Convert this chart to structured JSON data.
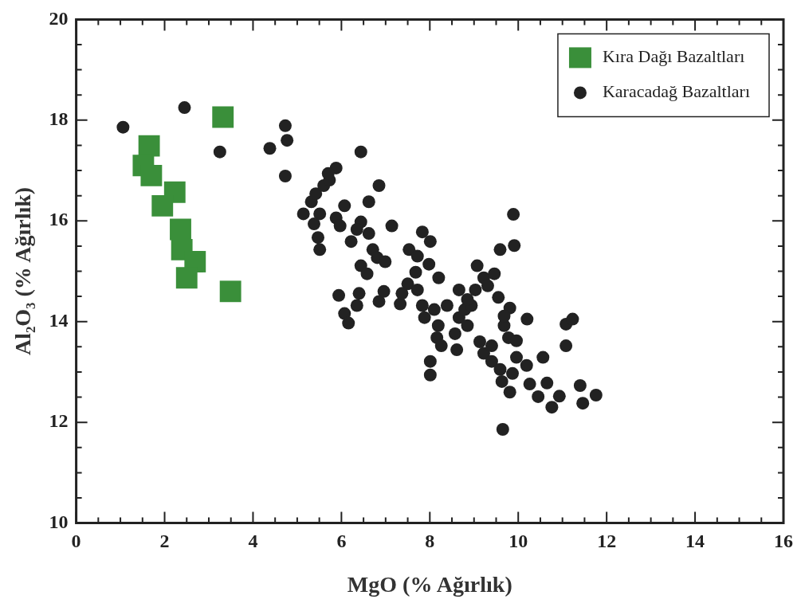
{
  "chart_data": {
    "type": "scatter",
    "xlabel": "MgO (% Ağırlık)",
    "ylabel": "Al₂O₃ (% Ağırlık)",
    "xlim": [
      0,
      16
    ],
    "ylim": [
      10,
      20
    ],
    "xticks": [
      0,
      {
        "value": 0.5,
        "label": null
      },
      {
        "value": 1,
        "label": null
      },
      {
        "value": 1.5,
        "label": null
      },
      2,
      {
        "value": 2.5,
        "label": null
      },
      {
        "value": 3,
        "label": null
      },
      {
        "value": 3.5,
        "label": null
      },
      4,
      {
        "value": 4.5,
        "label": null
      },
      {
        "value": 5,
        "label": null
      },
      {
        "value": 5.5,
        "label": null
      },
      6,
      {
        "value": 6.5,
        "label": null
      },
      {
        "value": 7,
        "label": null
      },
      {
        "value": 7.5,
        "label": null
      },
      8,
      {
        "value": 8.5,
        "label": null
      },
      {
        "value": 9,
        "label": null
      },
      {
        "value": 9.5,
        "label": null
      },
      10,
      {
        "value": 10.5,
        "label": null
      },
      {
        "value": 11,
        "label": null
      },
      {
        "value": 11.5,
        "label": null
      },
      12,
      {
        "value": 12.5,
        "label": null
      },
      {
        "value": 13,
        "label": null
      },
      {
        "value": 13.5,
        "label": null
      },
      14,
      {
        "value": 14.5,
        "label": null
      },
      {
        "value": 15,
        "label": null
      },
      {
        "value": 15.5,
        "label": null
      },
      16
    ],
    "yticks": [
      10,
      {
        "value": 10.5,
        "label": null
      },
      {
        "value": 11,
        "label": null
      },
      {
        "value": 11.5,
        "label": null
      },
      12,
      {
        "value": 12.5,
        "label": null
      },
      {
        "value": 13,
        "label": null
      },
      {
        "value": 13.5,
        "label": null
      },
      14,
      {
        "value": 14.5,
        "label": null
      },
      {
        "value": 15,
        "label": null
      },
      {
        "value": 15.5,
        "label": null
      },
      16,
      {
        "value": 16.5,
        "label": null
      },
      {
        "value": 17,
        "label": null
      },
      {
        "value": 17.5,
        "label": null
      },
      18,
      {
        "value": 18.5,
        "label": null
      },
      {
        "value": 19,
        "label": null
      },
      {
        "value": 19.5,
        "label": null
      },
      20
    ],
    "legend": "top right",
    "grid": false,
    "series": [
      {
        "name": "Kıra Dağı Bazaltları",
        "color": "#3a8f3a",
        "marker": "square",
        "x": [
          3.32,
          3.49,
          1.65,
          1.52,
          2.23,
          1.95,
          2.36,
          2.39,
          2.69,
          2.5,
          1.7
        ],
        "values": [
          18.06,
          14.6,
          17.49,
          17.1,
          16.57,
          16.3,
          15.83,
          15.43,
          15.19,
          14.87,
          16.9
        ]
      },
      {
        "name": "Karacadağ Bazaltları",
        "color": "#222222",
        "marker": "circle",
        "x": [
          1.06,
          2.45,
          3.25,
          4.73,
          4.77,
          4.38,
          4.73,
          6.44,
          5.14,
          5.32,
          5.42,
          5.6,
          5.73,
          5.88,
          5.7,
          5.51,
          5.38,
          5.47,
          5.51,
          5.88,
          5.97,
          6.07,
          6.44,
          6.62,
          6.85,
          6.22,
          6.35,
          6.62,
          6.71,
          6.81,
          6.99,
          7.14,
          6.44,
          6.58,
          5.94,
          6.07,
          6.16,
          6.35,
          6.4,
          6.85,
          6.96,
          7.33,
          7.5,
          7.68,
          7.53,
          7.72,
          7.83,
          8.01,
          7.37,
          7.72,
          7.83,
          8.1,
          7.88,
          8.01,
          8.01,
          8.16,
          8.19,
          8.26,
          8.39,
          8.2,
          7.98,
          8.66,
          8.85,
          8.57,
          8.79,
          8.94,
          9.07,
          9.22,
          9.46,
          9.31,
          9.55,
          9.13,
          9.22,
          9.4,
          9.4,
          9.59,
          9.63,
          9.68,
          9.81,
          9.68,
          9.91,
          9.89,
          9.78,
          9.96,
          9.87,
          9.81,
          9.65,
          10.19,
          10.2,
          10.26,
          10.45,
          10.56,
          10.65,
          10.76,
          10.93,
          11.08,
          11.23,
          11.08,
          11.4,
          11.46,
          11.76,
          9.96,
          9.03,
          8.66,
          8.85,
          8.61,
          9.59
        ],
        "values": [
          17.86,
          18.25,
          17.37,
          17.89,
          17.6,
          17.44,
          16.89,
          17.37,
          16.14,
          16.38,
          16.54,
          16.7,
          16.81,
          17.05,
          16.94,
          16.14,
          15.94,
          15.67,
          15.43,
          16.06,
          15.9,
          16.3,
          15.98,
          16.38,
          16.7,
          15.59,
          15.83,
          15.75,
          15.43,
          15.27,
          15.19,
          15.9,
          15.11,
          14.95,
          14.52,
          14.16,
          13.97,
          14.32,
          14.56,
          14.4,
          14.6,
          14.35,
          14.75,
          14.98,
          15.43,
          15.3,
          15.78,
          15.59,
          14.56,
          14.63,
          14.32,
          14.24,
          14.08,
          13.21,
          12.94,
          13.68,
          13.92,
          13.52,
          14.32,
          14.87,
          15.14,
          14.08,
          13.92,
          13.76,
          14.24,
          14.32,
          15.11,
          14.87,
          14.95,
          14.71,
          14.48,
          13.6,
          13.37,
          13.52,
          13.21,
          13.05,
          12.81,
          13.92,
          14.27,
          14.11,
          15.51,
          16.13,
          13.68,
          13.29,
          12.97,
          12.6,
          11.86,
          13.13,
          14.05,
          12.76,
          12.51,
          13.29,
          12.78,
          12.3,
          12.52,
          13.95,
          14.05,
          13.52,
          12.73,
          12.38,
          12.54,
          13.62,
          14.63,
          14.63,
          14.44,
          13.44,
          15.43
        ]
      }
    ]
  }
}
